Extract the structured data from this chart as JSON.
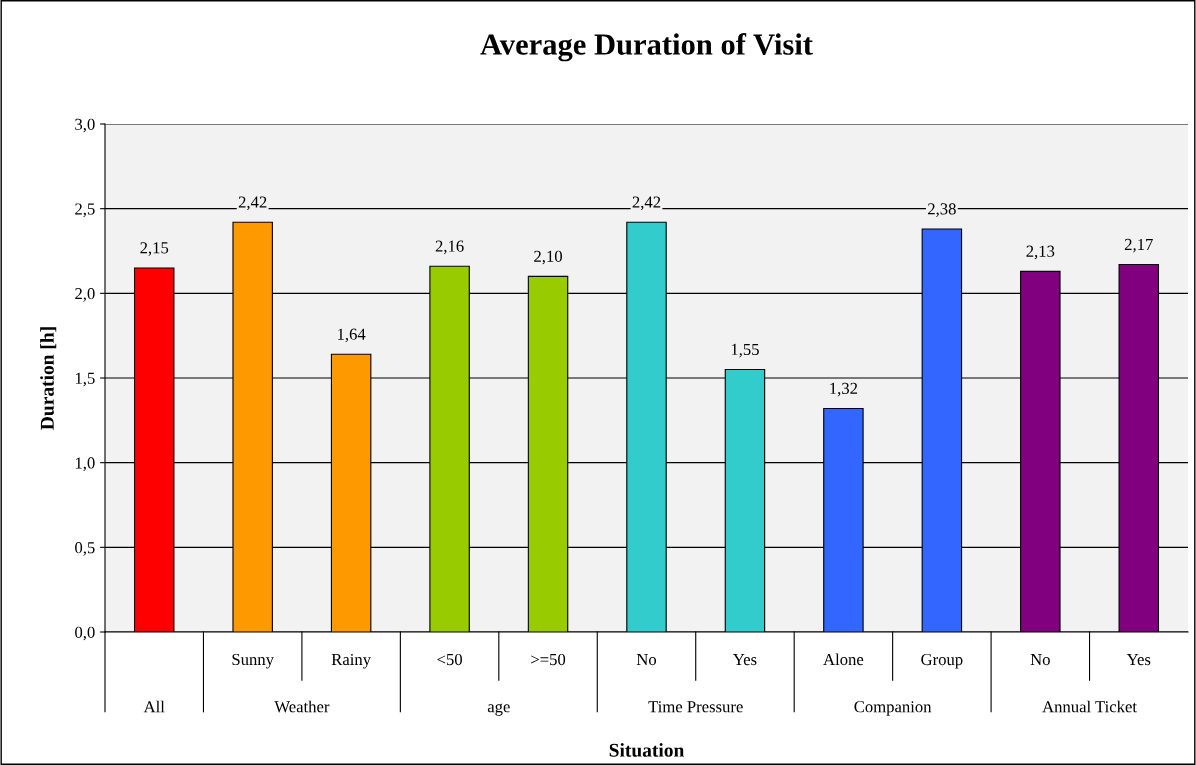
{
  "chart_data": {
    "type": "bar",
    "title": "Average Duration of Visit",
    "xlabel": "Situation",
    "ylabel": "Duration [h]",
    "categories": [
      null,
      "Sunny",
      "Rainy",
      "<50",
      ">=50",
      "No",
      "Yes",
      "Alone",
      "Group",
      "No",
      "Yes"
    ],
    "annotations": [
      "All",
      "Weather",
      "age",
      "Time Pressure",
      "Companion",
      "Annual Ticket"
    ],
    "values": [
      2.15,
      2.42,
      1.64,
      2.16,
      2.1,
      2.42,
      1.55,
      1.32,
      2.38,
      2.13,
      2.17
    ],
    "colors": [
      "#ff0000",
      "#ff9900",
      "#ff9900",
      "#99cc00",
      "#99cc00",
      "#33cccc",
      "#33cccc",
      "#3366ff",
      "#3366ff",
      "#800080",
      "#800080"
    ],
    "ylim": [
      0,
      3.0
    ],
    "yticks": [
      {
        "value": 0,
        "label": "0,0"
      },
      {
        "value": 0.5,
        "label": "0,5"
      },
      {
        "value": 1.0,
        "label": "1,0"
      },
      {
        "value": 1.5,
        "label": "1,5"
      },
      {
        "value": 2.0,
        "label": "2,0"
      },
      {
        "value": 2.5,
        "label": "2,5"
      },
      {
        "value": 3.0,
        "label": "3,0"
      }
    ],
    "value_labels": [
      "2,15",
      "2,42",
      "1,64",
      "2,16",
      "2,10",
      "2,42",
      "1,55",
      "1,32",
      "2,38",
      "2,13",
      "2,17"
    ],
    "grid": "y",
    "legend": false
  }
}
